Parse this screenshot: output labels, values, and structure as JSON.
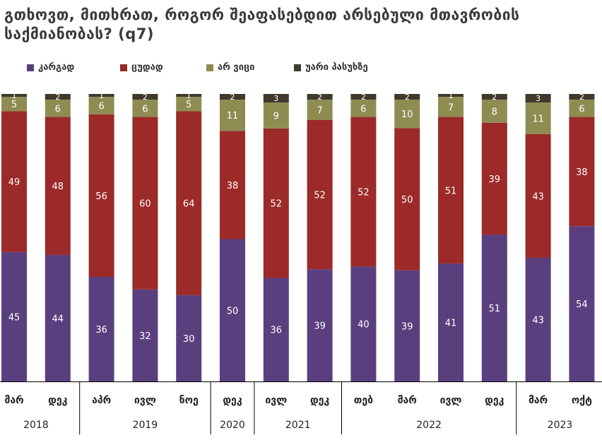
{
  "title": "გთხოვთ, მითხრათ, როგორ შეაფასებდით არსებული მთავრობის საქმიანობას? (q7)",
  "colors": {
    "good": "#5a3f7f",
    "bad": "#9b2a28",
    "dont_know": "#8f8c52",
    "refused": "#3f3a2c",
    "axis": "#000000",
    "label_light": "#ffffff",
    "label_dark": "#ffffff"
  },
  "chart_data": {
    "type": "bar",
    "stacked": true,
    "ylim": [
      0,
      100
    ],
    "categories": [
      "მარ",
      "დეკ",
      "აპრ",
      "ივლ",
      "ნოე",
      "დეკ",
      "ივლ",
      "დეკ",
      "თებ",
      "მარ",
      "ივლ",
      "დეკ",
      "მარ",
      "ოქტ"
    ],
    "years": [
      {
        "label": "2018",
        "span": 2
      },
      {
        "label": "2019",
        "span": 3
      },
      {
        "label": "2020",
        "span": 1
      },
      {
        "label": "2021",
        "span": 2
      },
      {
        "label": "2022",
        "span": 4
      },
      {
        "label": "2023",
        "span": 2
      }
    ],
    "series": [
      {
        "name": "კარგად",
        "key": "good",
        "values": [
          45,
          44,
          36,
          32,
          30,
          50,
          36,
          39,
          40,
          39,
          41,
          51,
          43,
          54
        ]
      },
      {
        "name": "ცუდად",
        "key": "bad",
        "values": [
          49,
          48,
          56,
          60,
          64,
          38,
          52,
          52,
          52,
          50,
          51,
          39,
          43,
          38
        ]
      },
      {
        "name": "არ ვიცი",
        "key": "dont_know",
        "values": [
          5,
          6,
          6,
          6,
          5,
          11,
          9,
          7,
          6,
          10,
          7,
          8,
          11,
          6
        ]
      },
      {
        "name": "უარი პასუხზე",
        "key": "refused",
        "values": [
          1,
          2,
          1,
          2,
          1,
          2,
          3,
          2,
          2,
          2,
          1,
          2,
          3,
          2
        ]
      }
    ]
  }
}
